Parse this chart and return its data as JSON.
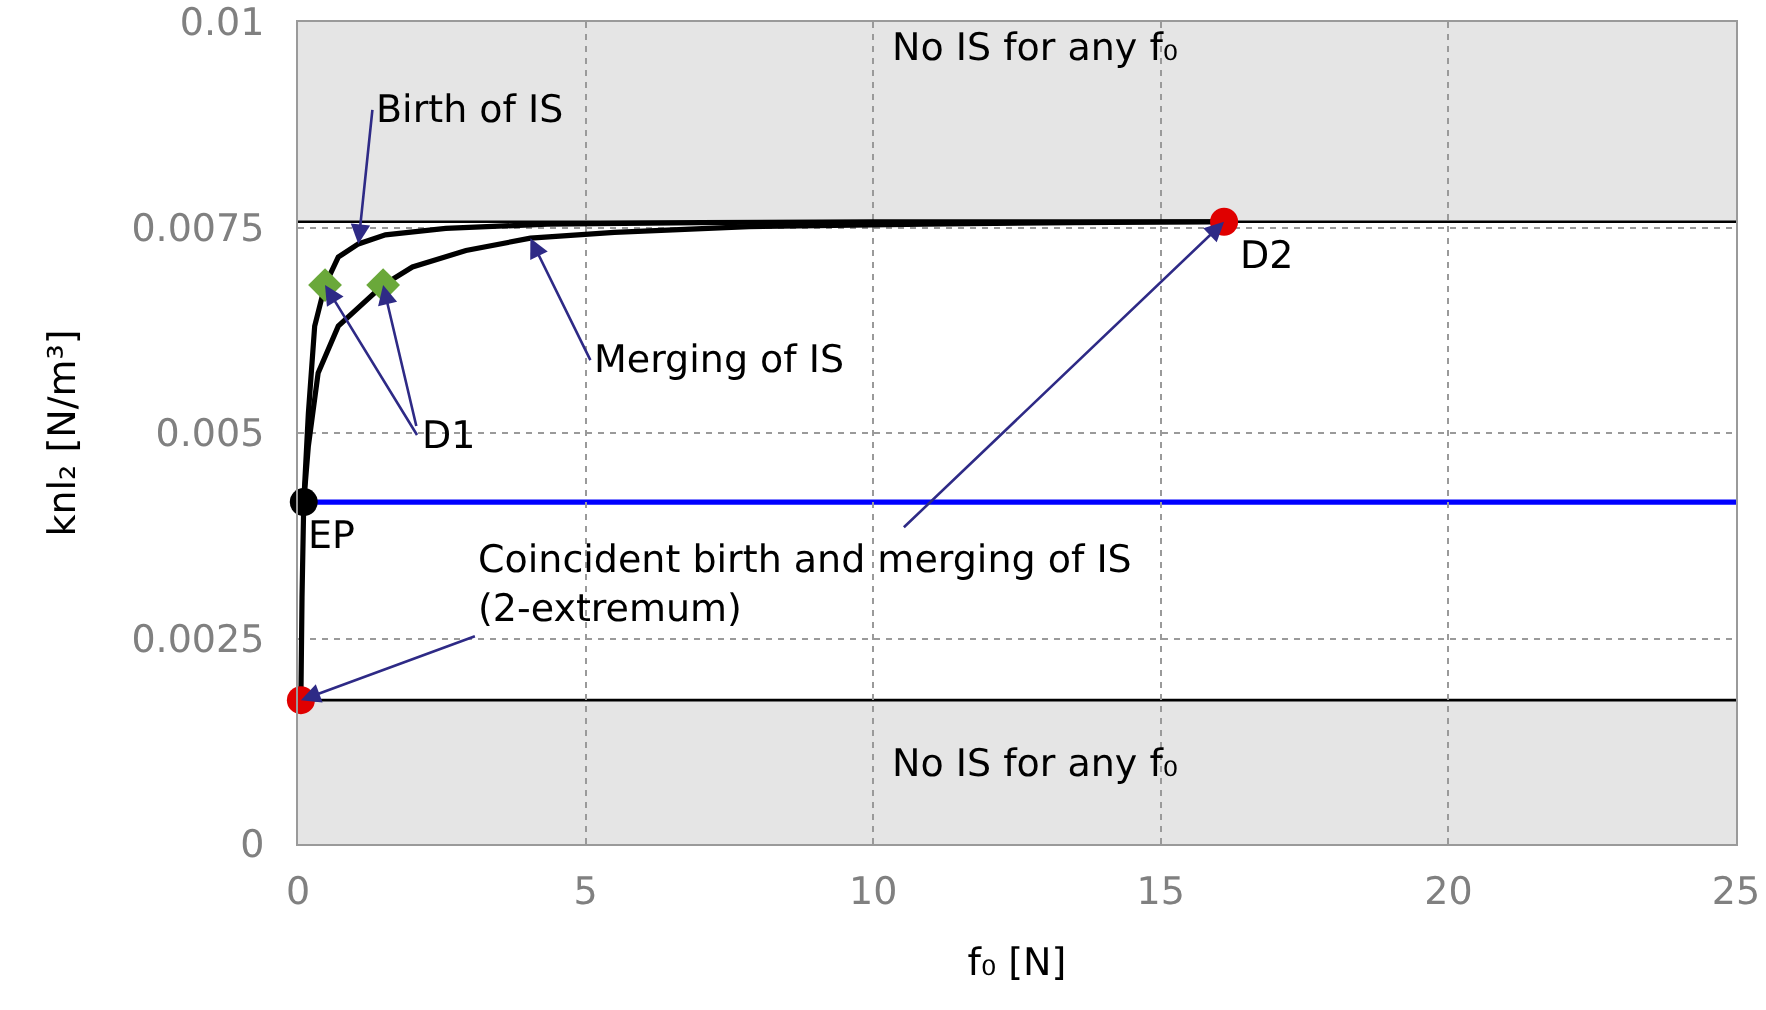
{
  "chart_data": {
    "type": "line",
    "xlabel": "f₀ [N]",
    "ylabel": "knl₂ [N/m³]",
    "xlim": [
      0,
      25
    ],
    "ylim": [
      0,
      0.01
    ],
    "xticks": [
      0,
      5,
      10,
      15,
      20,
      25
    ],
    "yticks": [
      0,
      0.0025,
      0.005,
      0.0075,
      0.01
    ],
    "grid": true,
    "series": [
      {
        "color": "#000000",
        "x": [
          0.05,
          0.07,
          0.1,
          0.18,
          0.29,
          0.47,
          0.7,
          1.05,
          1.52,
          2.57,
          4.33,
          7,
          10,
          13,
          16.1
        ],
        "values": [
          0.00175,
          0.003,
          0.00416,
          0.00524,
          0.0063,
          0.0068,
          0.00714,
          0.0073,
          0.00741,
          0.00749,
          0.00754,
          0.00756,
          0.00757,
          0.00757,
          0.00757
        ]
      },
      {
        "color": "#000000",
        "x": [
          0.1,
          0.18,
          0.35,
          0.7,
          1.48,
          1.99,
          2.92,
          4.04,
          5.5,
          7.84,
          10.9,
          13.5,
          16.1
        ],
        "values": [
          0.00416,
          0.00484,
          0.00573,
          0.0063,
          0.0068,
          0.00702,
          0.00722,
          0.00737,
          0.00744,
          0.00751,
          0.00754,
          0.00756,
          0.00757
        ]
      },
      {
        "type": "scatter",
        "marker": "circle",
        "color": "#000000",
        "x": [
          0.1
        ],
        "values": [
          0.00416
        ]
      },
      {
        "type": "scatter",
        "marker": "diamond",
        "color": "#6aa83a",
        "x": [
          0.47,
          1.48
        ],
        "values": [
          0.0068,
          0.0068
        ]
      },
      {
        "type": "scatter",
        "marker": "circle",
        "color": "#e00000",
        "x": [
          0.05,
          16.1
        ],
        "values": [
          0.00175,
          0.00757
        ]
      }
    ],
    "ref_lines": [
      {
        "axis": "y",
        "value": 0.00757,
        "color": "#000000"
      },
      {
        "axis": "y",
        "value": 0.00175,
        "color": "#000000"
      },
      {
        "axis": "y",
        "value": 0.00416,
        "color": "#0000ff"
      }
    ],
    "bands": [
      {
        "axis": "y",
        "from": 0.00757,
        "to": 0.01,
        "label": "No IS for any f₀",
        "color": "#e5e5e5"
      },
      {
        "axis": "y",
        "from": 0,
        "to": 0.00175,
        "label": "No IS for any f₀",
        "color": "#e5e5e5"
      }
    ],
    "annotations": [
      {
        "text": "Birth of IS",
        "x": 1.05,
        "y": 0.0073
      },
      {
        "text": "Merging of IS",
        "x": 4.04,
        "y": 0.00737
      },
      {
        "text": "D1",
        "x": 0.47,
        "y": 0.0068
      },
      {
        "text": "EP",
        "x": 0.1,
        "y": 0.00416
      },
      {
        "text": "D2",
        "x": 16.1,
        "y": 0.00757
      },
      {
        "text": "Coincident birth and merging of IS\n(2-extremum)",
        "x": 0.05,
        "y": 0.00175
      }
    ]
  }
}
